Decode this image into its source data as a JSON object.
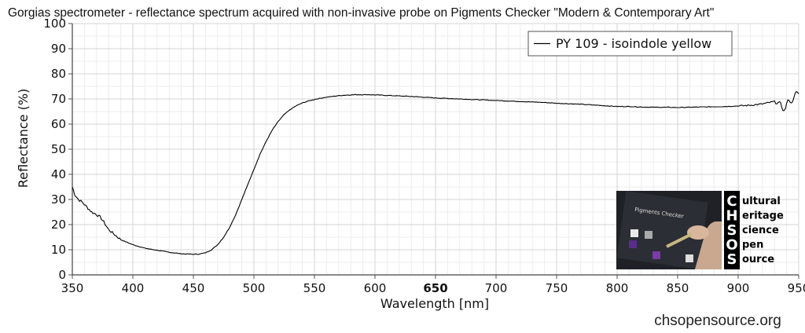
{
  "chart_data": {
    "type": "line",
    "title": "Gorgias spectrometer - reflectance spectrum acquired with non-invasive probe on Pigments Checker \"Modern & Contemporary Art\"",
    "xlabel": "Wavelength [nm]",
    "ylabel": "Reflectance (%)",
    "xlim": [
      350,
      950
    ],
    "ylim": [
      0,
      100
    ],
    "x_ticks": [
      350,
      400,
      450,
      500,
      550,
      600,
      650,
      700,
      750,
      800,
      850,
      900,
      950
    ],
    "x_tick_labels": [
      "350",
      "400",
      "450",
      "500",
      "550",
      "600",
      "650",
      "700",
      "750",
      "800",
      "850",
      "900",
      "950"
    ],
    "x_tick_bold": "650",
    "y_ticks": [
      0,
      10,
      20,
      30,
      40,
      50,
      60,
      70,
      80,
      90,
      100
    ],
    "y_tick_labels": [
      "0",
      "10",
      "20",
      "30",
      "40",
      "50",
      "60",
      "70",
      "80",
      "90",
      "100"
    ],
    "grid": true,
    "legend_position": "top-right",
    "series": [
      {
        "name": "PY 109 - isoindole yellow",
        "color": "#000000",
        "x": [
          350,
          352,
          355,
          358,
          360,
          363,
          366,
          370,
          373,
          376,
          380,
          385,
          390,
          395,
          400,
          405,
          410,
          415,
          420,
          425,
          430,
          435,
          440,
          445,
          450,
          455,
          460,
          465,
          470,
          475,
          480,
          485,
          490,
          495,
          500,
          505,
          510,
          515,
          520,
          525,
          530,
          535,
          540,
          545,
          550,
          555,
          560,
          565,
          570,
          575,
          580,
          585,
          590,
          595,
          600,
          610,
          620,
          630,
          640,
          650,
          660,
          670,
          680,
          690,
          700,
          710,
          720,
          730,
          740,
          750,
          760,
          770,
          780,
          790,
          800,
          810,
          820,
          830,
          840,
          850,
          860,
          870,
          880,
          890,
          900,
          910,
          920,
          925,
          930,
          935,
          938,
          940,
          942,
          944,
          946,
          948,
          950
        ],
        "y": [
          35,
          32,
          30,
          29,
          28,
          26.5,
          25,
          24,
          23,
          21,
          18,
          16,
          14,
          13,
          12,
          11.3,
          10.6,
          10.2,
          9.8,
          9.4,
          9.0,
          8.7,
          8.4,
          8.3,
          8.2,
          8.3,
          8.8,
          10,
          12,
          15,
          19,
          24,
          30,
          36,
          42,
          48,
          53,
          57.5,
          61,
          63.8,
          65.8,
          67.3,
          68.4,
          69.2,
          69.8,
          70.3,
          70.7,
          71,
          71.3,
          71.5,
          71.6,
          71.7,
          71.7,
          71.7,
          71.6,
          71.4,
          71.2,
          71.0,
          70.7,
          70.4,
          70.2,
          70.0,
          69.8,
          69.6,
          69.4,
          69.2,
          69.0,
          68.8,
          68.6,
          68.3,
          68.1,
          67.9,
          67.6,
          67.3,
          67.0,
          67.0,
          66.8,
          66.7,
          66.7,
          66.6,
          66.7,
          66.8,
          66.9,
          67.0,
          67.2,
          67.5,
          68.0,
          68.5,
          69.0,
          68.0,
          65.0,
          68.0,
          70.0,
          68.0,
          71.0,
          72.5,
          72.0
        ]
      }
    ]
  },
  "logo": {
    "photo_label": "Pigments Checker",
    "letters": [
      "C",
      "H",
      "S",
      "O",
      "S"
    ],
    "words": [
      "ultural",
      "eritage",
      "cience",
      "pen",
      "ource"
    ]
  },
  "footer": {
    "site": "chsopensource.org"
  }
}
